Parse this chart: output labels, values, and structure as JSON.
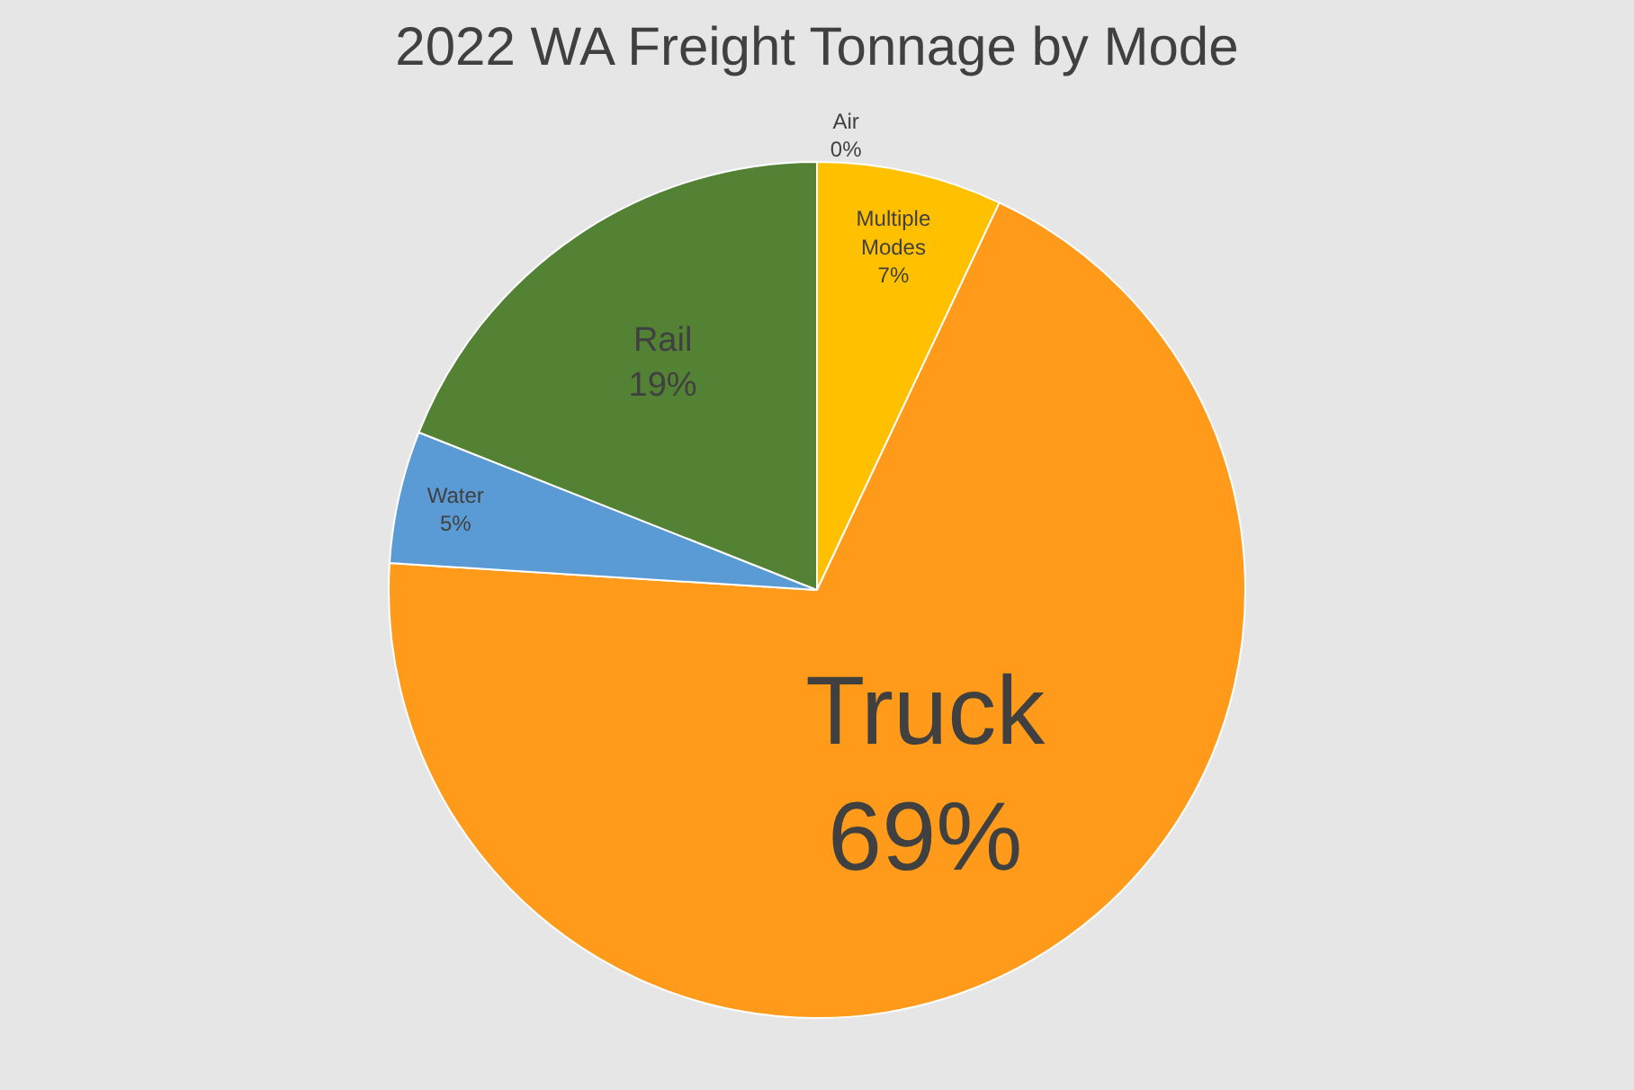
{
  "chart_data": {
    "type": "pie",
    "title": "2022 WA Freight Tonnage by Mode",
    "categories": [
      "Air",
      "Multiple Modes",
      "Truck",
      "Water",
      "Rail"
    ],
    "values": [
      0,
      7,
      69,
      5,
      19
    ],
    "value_labels": [
      "0%",
      "7%",
      "69%",
      "5%",
      "19%"
    ],
    "colors": [
      "#a5a5a5",
      "#ffc000",
      "#ff9a1a",
      "#5b9bd5",
      "#548235"
    ],
    "legend": false
  }
}
